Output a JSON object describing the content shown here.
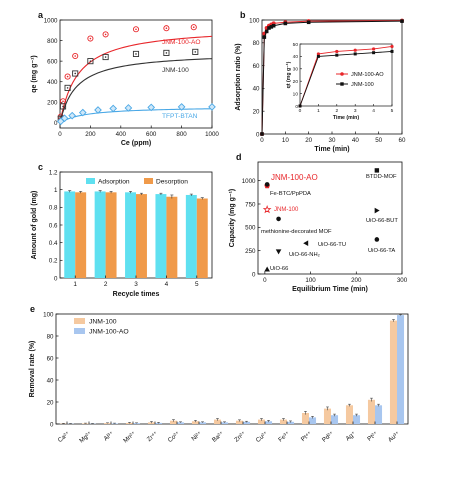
{
  "chart_data": [
    {
      "panel_label": "a",
      "type": "scatter",
      "xlabel": "Ce (ppm)",
      "ylabel": "qe (mg g⁻¹)",
      "xlim": [
        0,
        1000
      ],
      "ylim": [
        -50,
        1000
      ],
      "xticks": [
        0,
        200,
        400,
        600,
        800,
        1000
      ],
      "yticks": [
        0,
        200,
        400,
        600,
        800,
        1000
      ],
      "series": [
        {
          "name": "JNM-100-AO",
          "color": "#e8262a",
          "marker": "circle-dot",
          "x": [
            5,
            20,
            50,
            100,
            200,
            300,
            500,
            700,
            880
          ],
          "y": [
            60,
            210,
            450,
            650,
            820,
            860,
            910,
            920,
            930
          ]
        },
        {
          "name": "JNM-100",
          "color": "#333333",
          "marker": "square-dot",
          "x": [
            5,
            20,
            50,
            100,
            200,
            300,
            500,
            700,
            890
          ],
          "y": [
            40,
            160,
            340,
            480,
            600,
            640,
            670,
            680,
            690
          ]
        },
        {
          "name": "TFPT-BTAN",
          "color": "#4aa8e6",
          "marker": "diamond",
          "x": [
            5,
            30,
            80,
            150,
            250,
            350,
            450,
            600,
            800,
            1000
          ],
          "y": [
            15,
            45,
            70,
            100,
            125,
            140,
            145,
            150,
            155,
            155
          ]
        }
      ]
    },
    {
      "panel_label": "b",
      "type": "line",
      "xlabel": "Time (min)",
      "ylabel": "Adsorption ratio (%)",
      "xlim": [
        0,
        60
      ],
      "ylim": [
        0,
        100
      ],
      "xticks": [
        0,
        10,
        20,
        30,
        40,
        50,
        60
      ],
      "yticks": [
        0,
        20,
        40,
        60,
        80,
        100
      ],
      "series": [
        {
          "name": "JNM-100-AO",
          "color": "#e8262a",
          "x": [
            0,
            1,
            2,
            3,
            4,
            5,
            10,
            20,
            60
          ],
          "y": [
            0,
            88,
            93,
            95,
            96,
            97,
            98,
            99,
            99.5
          ]
        },
        {
          "name": "JNM-100",
          "color": "#111111",
          "x": [
            0,
            1,
            2,
            3,
            4,
            5,
            10,
            20,
            60
          ],
          "y": [
            0,
            85,
            90,
            93,
            94,
            95,
            97,
            98,
            99
          ]
        }
      ],
      "inset": {
        "xlabel": "Time (min)",
        "ylabel": "qt (mg g⁻¹)",
        "xlim": [
          0,
          5
        ],
        "ylim": [
          0,
          50
        ],
        "xticks": [
          0,
          1,
          2,
          3,
          4,
          5
        ],
        "yticks": [
          0,
          10,
          20,
          30,
          40,
          50
        ],
        "series": [
          {
            "name": "JNM-100-AO",
            "color": "#e8262a",
            "x": [
              0,
              1,
              2,
              3,
              4,
              5
            ],
            "y": [
              0,
              42,
              44,
              45,
              46,
              48
            ]
          },
          {
            "name": "JNM-100",
            "color": "#111111",
            "x": [
              0,
              1,
              2,
              3,
              4,
              5
            ],
            "y": [
              0,
              40,
              41,
              42,
              43,
              44
            ]
          }
        ]
      }
    },
    {
      "panel_label": "c",
      "type": "bar",
      "xlabel": "Recycle times",
      "ylabel": "Amount of gold (mg)",
      "ylim": [
        0,
        1.2
      ],
      "yticks": [
        0.0,
        0.2,
        0.4,
        0.6,
        0.8,
        1.0,
        1.2
      ],
      "categories": [
        "1",
        "2",
        "3",
        "4",
        "5"
      ],
      "legend": "top",
      "series": [
        {
          "name": "Adsorption",
          "color": "#5fe0f0",
          "values": [
            0.98,
            0.98,
            0.97,
            0.95,
            0.94
          ],
          "errors": [
            0.01,
            0.01,
            0.01,
            0.01,
            0.01
          ]
        },
        {
          "name": "Desorption",
          "color": "#f09a4a",
          "values": [
            0.97,
            0.97,
            0.95,
            0.92,
            0.9
          ],
          "errors": [
            0.01,
            0.01,
            0.01,
            0.02,
            0.01
          ]
        }
      ]
    },
    {
      "panel_label": "d",
      "type": "scatter",
      "xlabel": "Equilibrium Time (min)",
      "ylabel": "Capacity (mg g⁻¹)",
      "xlim": [
        -15,
        300
      ],
      "ylim": [
        0,
        1200
      ],
      "xticks": [
        0,
        100,
        200,
        300
      ],
      "yticks": [
        0,
        250,
        500,
        750,
        1000
      ],
      "points": [
        {
          "label": "JNM-100-AO",
          "x": 5,
          "y": 945,
          "marker": "pentagon",
          "color": "#e8262a",
          "highlight": true
        },
        {
          "label": "Fe-BTC/PpPDA",
          "x": 5,
          "y": 960,
          "marker": "circle",
          "color": "#111111"
        },
        {
          "label": "JNM-100",
          "x": 5,
          "y": 690,
          "marker": "star-open",
          "color": "#e8262a",
          "highlight": true
        },
        {
          "label": "methionine-decorated MOF",
          "x": 30,
          "y": 590,
          "marker": "circle",
          "color": "#111111"
        },
        {
          "label": "UiO-66-TU",
          "x": 90,
          "y": 330,
          "marker": "triangle-left",
          "color": "#111111"
        },
        {
          "label": "UiO-66-NH₂",
          "x": 30,
          "y": 240,
          "marker": "triangle-down",
          "color": "#111111"
        },
        {
          "label": "UiO-66",
          "x": 5,
          "y": 50,
          "marker": "triangle-up",
          "color": "#111111"
        },
        {
          "label": "BTDD-MOF",
          "x": 245,
          "y": 1110,
          "marker": "square",
          "color": "#111111"
        },
        {
          "label": "UiO-66-BUT",
          "x": 245,
          "y": 680,
          "marker": "triangle-right",
          "color": "#111111"
        },
        {
          "label": "UiO-66-TA",
          "x": 245,
          "y": 370,
          "marker": "circle",
          "color": "#111111"
        }
      ]
    },
    {
      "panel_label": "e",
      "type": "bar",
      "ylabel": "Removal rate (%)",
      "ylim": [
        0,
        100
      ],
      "yticks": [
        0,
        20,
        40,
        60,
        80,
        100
      ],
      "categories": [
        "Ca²⁺",
        "Mg²⁺",
        "Al³⁺",
        "Mn²⁺",
        "Zr⁴⁺",
        "Co²⁺",
        "Ni²⁺",
        "Ba²⁺",
        "Zn²⁺",
        "Cu²⁺",
        "Fe³⁺",
        "Pt⁴⁺",
        "Pd²⁺",
        "Ag⁺",
        "Pt²⁺",
        "Au³⁺"
      ],
      "legend": "top-left",
      "series": [
        {
          "name": "JNM-100",
          "color": "#f5c9a0",
          "values": [
            0.3,
            0.5,
            0.8,
            1.0,
            1.5,
            3.0,
            2.5,
            4.0,
            3.0,
            4.0,
            4.0,
            10.0,
            14.0,
            17.0,
            22.0,
            94.0
          ],
          "errors": [
            0.3,
            0.3,
            0.3,
            0.5,
            0.8,
            1.0,
            0.8,
            1.0,
            0.8,
            1.0,
            1.0,
            1.5,
            1.5,
            1.0,
            1.5,
            1.0
          ]
        },
        {
          "name": "JNM-100-AO",
          "color": "#a8c6ef",
          "values": [
            0.3,
            0.3,
            0.5,
            0.8,
            1.0,
            1.5,
            1.5,
            1.5,
            2.0,
            2.5,
            2.0,
            6.0,
            8.0,
            8.0,
            17.0,
            99.0
          ],
          "errors": [
            0.2,
            0.2,
            0.3,
            0.3,
            0.5,
            0.5,
            0.5,
            0.5,
            0.5,
            0.8,
            0.8,
            1.0,
            1.0,
            1.0,
            1.0,
            0.5
          ]
        }
      ]
    }
  ]
}
